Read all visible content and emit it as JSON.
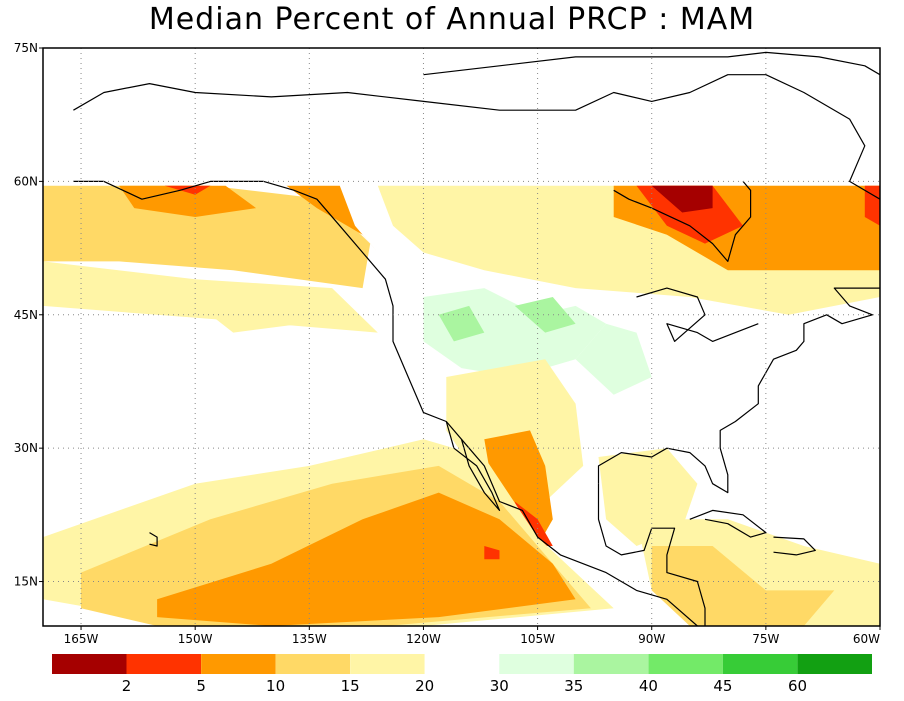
{
  "title": "Median Percent of Annual PRCP  :  MAM",
  "map": {
    "lon_range": [
      -170,
      -60
    ],
    "lat_range": [
      10,
      75
    ],
    "lon_ticks": [
      {
        "value": -165,
        "label": "165W"
      },
      {
        "value": -150,
        "label": "150W"
      },
      {
        "value": -135,
        "label": "135W"
      },
      {
        "value": -120,
        "label": "120W"
      },
      {
        "value": -105,
        "label": "105W"
      },
      {
        "value": -90,
        "label": "90W"
      },
      {
        "value": -75,
        "label": "75W"
      },
      {
        "value": -60,
        "label": "60W"
      }
    ],
    "lat_ticks": [
      {
        "value": 15,
        "label": "15N"
      },
      {
        "value": 30,
        "label": "30N"
      },
      {
        "value": 45,
        "label": "45N"
      },
      {
        "value": 60,
        "label": "60N"
      },
      {
        "value": 75,
        "label": "75N"
      }
    ],
    "gridlines": "dotted",
    "data_northern_limit_lat": 59.5
  },
  "colorbar": {
    "bins": [
      {
        "color": "#a50000"
      },
      {
        "color": "#ff3300"
      },
      {
        "color": "#ff9900"
      },
      {
        "color": "#ffd966"
      },
      {
        "color": "#fff5a6"
      },
      {
        "color": "#ffffff"
      },
      {
        "color": "#dfffdf"
      },
      {
        "color": "#aaf5a0"
      },
      {
        "color": "#73ea68"
      },
      {
        "color": "#37cc37"
      },
      {
        "color": "#12a012"
      }
    ],
    "labels": [
      "2",
      "5",
      "10",
      "15",
      "20",
      "30",
      "35",
      "40",
      "45",
      "60"
    ]
  },
  "regions": [
    {
      "name": "northeast-pacific-band",
      "color": "#ffd966",
      "pts": [
        [
          -170,
          59.5
        ],
        [
          -148,
          59.5
        ],
        [
          -133,
          58
        ],
        [
          -127,
          53
        ],
        [
          -128,
          48
        ],
        [
          -145,
          50
        ],
        [
          -160,
          51
        ],
        [
          -170,
          51
        ]
      ]
    },
    {
      "name": "pacific-yellow-pale",
      "color": "#fff5a6",
      "pts": [
        [
          -170,
          51
        ],
        [
          -150,
          49
        ],
        [
          -132,
          48
        ],
        [
          -126,
          43
        ],
        [
          -140,
          44
        ],
        [
          -155,
          45
        ],
        [
          -170,
          46
        ]
      ]
    },
    {
      "name": "pacific-patch-pale",
      "color": "#fff5a6",
      "pts": [
        [
          -148,
          45
        ],
        [
          -140,
          46
        ],
        [
          -136,
          44
        ],
        [
          -145,
          43
        ]
      ]
    },
    {
      "name": "alaska-orange",
      "color": "#ff9900",
      "pts": [
        [
          -160,
          59.5
        ],
        [
          -146,
          59.5
        ],
        [
          -142,
          57
        ],
        [
          -150,
          56
        ],
        [
          -158,
          57
        ]
      ]
    },
    {
      "name": "alaska-coast-red",
      "color": "#ff3300",
      "pts": [
        [
          -154,
          59.5
        ],
        [
          -148,
          59.5
        ],
        [
          -150,
          58.5
        ]
      ]
    },
    {
      "name": "bc-coast-orange",
      "color": "#ff9900",
      "pts": [
        [
          -138,
          59.5
        ],
        [
          -131,
          59.5
        ],
        [
          -129,
          55
        ],
        [
          -126,
          52
        ],
        [
          -128,
          54
        ],
        [
          -134,
          57
        ]
      ]
    },
    {
      "name": "canada-pale",
      "color": "#fff5a6",
      "pts": [
        [
          -126,
          59.5
        ],
        [
          -60,
          59.5
        ],
        [
          -60,
          47
        ],
        [
          -72,
          45
        ],
        [
          -85,
          47
        ],
        [
          -100,
          48
        ],
        [
          -112,
          50
        ],
        [
          -120,
          52
        ],
        [
          -124,
          55
        ]
      ]
    },
    {
      "name": "hudson-orange",
      "color": "#ff9900",
      "pts": [
        [
          -95,
          59.5
        ],
        [
          -60,
          59.5
        ],
        [
          -60,
          50
        ],
        [
          -70,
          50
        ],
        [
          -80,
          50
        ],
        [
          -88,
          54
        ],
        [
          -95,
          56
        ]
      ]
    },
    {
      "name": "hudson-red",
      "color": "#ff3300",
      "pts": [
        [
          -92,
          59.5
        ],
        [
          -82,
          59.5
        ],
        [
          -78,
          55
        ],
        [
          -83,
          53
        ],
        [
          -88,
          55
        ]
      ]
    },
    {
      "name": "hudson-darkred",
      "color": "#a50000",
      "pts": [
        [
          -90,
          59.5
        ],
        [
          -82,
          59.5
        ],
        [
          -82,
          57
        ],
        [
          -86,
          56.5
        ]
      ]
    },
    {
      "name": "labrador-red",
      "color": "#ff3300",
      "pts": [
        [
          -62,
          59.5
        ],
        [
          -60,
          59.5
        ],
        [
          -60,
          55
        ],
        [
          -62,
          56
        ]
      ]
    },
    {
      "name": "northwest-green",
      "color": "#dfffdf",
      "pts": [
        [
          -120,
          47
        ],
        [
          -112,
          48
        ],
        [
          -105,
          45
        ],
        [
          -100,
          46
        ],
        [
          -96,
          44
        ],
        [
          -100,
          40
        ],
        [
          -108,
          38
        ],
        [
          -115,
          39
        ],
        [
          -120,
          42
        ]
      ]
    },
    {
      "name": "plains-green",
      "color": "#dfffdf",
      "pts": [
        [
          -96,
          44
        ],
        [
          -92,
          43
        ],
        [
          -90,
          38
        ],
        [
          -95,
          36
        ],
        [
          -100,
          40
        ]
      ]
    },
    {
      "name": "idaho-green-mid",
      "color": "#aaf5a0",
      "pts": [
        [
          -118,
          45
        ],
        [
          -114,
          46
        ],
        [
          -112,
          43
        ],
        [
          -116,
          42
        ]
      ]
    },
    {
      "name": "montana-green-mid",
      "color": "#aaf5a0",
      "pts": [
        [
          -108,
          46
        ],
        [
          -103,
          47
        ],
        [
          -100,
          44
        ],
        [
          -104,
          43
        ]
      ]
    },
    {
      "name": "southwest-yellow",
      "color": "#ffd966",
      "pts": [
        [
          -115,
          36
        ],
        [
          -105,
          38
        ],
        [
          -101,
          33
        ],
        [
          -103,
          28
        ],
        [
          -108,
          25
        ],
        [
          -113,
          28
        ]
      ]
    },
    {
      "name": "southwest-pale",
      "color": "#fff5a6",
      "pts": [
        [
          -117,
          38
        ],
        [
          -104,
          40
        ],
        [
          -100,
          35
        ],
        [
          -99,
          28
        ],
        [
          -104,
          24
        ],
        [
          -113,
          27
        ],
        [
          -117,
          32
        ]
      ]
    },
    {
      "name": "mexico-orange",
      "color": "#ff9900",
      "pts": [
        [
          -112,
          31
        ],
        [
          -106,
          32
        ],
        [
          -104,
          28
        ],
        [
          -103,
          22
        ],
        [
          -105,
          19
        ],
        [
          -109,
          22
        ],
        [
          -111,
          26
        ]
      ]
    },
    {
      "name": "mexico-red",
      "color": "#ff3300",
      "pts": [
        [
          -108,
          24
        ],
        [
          -105,
          22
        ],
        [
          -103,
          19
        ],
        [
          -106,
          19
        ],
        [
          -107,
          21
        ]
      ]
    },
    {
      "name": "tropical-pacific-pale",
      "color": "#fff5a6",
      "pts": [
        [
          -170,
          20
        ],
        [
          -150,
          26
        ],
        [
          -135,
          28
        ],
        [
          -120,
          31
        ],
        [
          -112,
          29
        ],
        [
          -105,
          20
        ],
        [
          -95,
          12
        ],
        [
          -120,
          10
        ],
        [
          -150,
          10
        ],
        [
          -170,
          13
        ]
      ]
    },
    {
      "name": "tropical-pacific-yellow",
      "color": "#ffd966",
      "pts": [
        [
          -165,
          16
        ],
        [
          -148,
          22
        ],
        [
          -132,
          26
        ],
        [
          -118,
          28
        ],
        [
          -110,
          24
        ],
        [
          -104,
          18
        ],
        [
          -98,
          12
        ],
        [
          -125,
          10
        ],
        [
          -155,
          10
        ],
        [
          -165,
          12
        ]
      ]
    },
    {
      "name": "tropical-pacific-orange",
      "color": "#ff9900",
      "pts": [
        [
          -155,
          13
        ],
        [
          -140,
          17
        ],
        [
          -128,
          22
        ],
        [
          -118,
          25
        ],
        [
          -110,
          22
        ],
        [
          -103,
          17
        ],
        [
          -100,
          13
        ],
        [
          -118,
          11
        ],
        [
          -140,
          10
        ],
        [
          -155,
          11
        ]
      ]
    },
    {
      "name": "pacific-red-spot",
      "color": "#ff3300",
      "pts": [
        [
          -112,
          19
        ],
        [
          -110,
          18.5
        ],
        [
          -110,
          17.5
        ],
        [
          -112,
          17.5
        ]
      ]
    },
    {
      "name": "gulf-yellow",
      "color": "#fff5a6",
      "pts": [
        [
          -97,
          29
        ],
        [
          -88,
          30
        ],
        [
          -84,
          26
        ],
        [
          -86,
          21
        ],
        [
          -92,
          19
        ],
        [
          -96,
          22
        ]
      ]
    },
    {
      "name": "caribbean-pale",
      "color": "#fff5a6",
      "pts": [
        [
          -92,
          22
        ],
        [
          -80,
          22
        ],
        [
          -70,
          19
        ],
        [
          -60,
          17
        ],
        [
          -60,
          10
        ],
        [
          -80,
          10
        ],
        [
          -90,
          14
        ]
      ]
    },
    {
      "name": "caribbean-yellow",
      "color": "#ffd966",
      "pts": [
        [
          -90,
          19
        ],
        [
          -82,
          19
        ],
        [
          -75,
          14
        ],
        [
          -66,
          14
        ],
        [
          -70,
          10
        ],
        [
          -85,
          10
        ],
        [
          -90,
          14
        ]
      ]
    }
  ],
  "coastlines": [
    {
      "name": "north-america-west-coast",
      "pts": [
        [
          -166,
          60
        ],
        [
          -162,
          60
        ],
        [
          -157,
          58
        ],
        [
          -152,
          59
        ],
        [
          -148,
          60
        ],
        [
          -141,
          60
        ],
        [
          -137,
          59
        ],
        [
          -134,
          58
        ],
        [
          -131,
          55
        ],
        [
          -128,
          52
        ],
        [
          -125,
          49
        ],
        [
          -124,
          46
        ],
        [
          -124,
          42
        ],
        [
          -122,
          38
        ],
        [
          -120,
          34
        ],
        [
          -117,
          33
        ],
        [
          -114,
          30
        ],
        [
          -112,
          28
        ],
        [
          -110,
          24
        ],
        [
          -107,
          23
        ],
        [
          -105,
          20
        ],
        [
          -102,
          18
        ],
        [
          -96,
          16
        ],
        [
          -92,
          14
        ],
        [
          -88,
          13
        ],
        [
          -84,
          10
        ]
      ]
    },
    {
      "name": "baja-california",
      "pts": [
        [
          -117,
          33
        ],
        [
          -116,
          30
        ],
        [
          -113,
          28
        ],
        [
          -111,
          25
        ],
        [
          -110,
          23
        ],
        [
          -112,
          25
        ],
        [
          -114,
          28
        ],
        [
          -115,
          31
        ]
      ]
    },
    {
      "name": "gulf-coast",
      "pts": [
        [
          -97,
          26
        ],
        [
          -97,
          28
        ],
        [
          -94,
          29.5
        ],
        [
          -90,
          29
        ],
        [
          -88,
          30
        ],
        [
          -85,
          29.5
        ],
        [
          -83,
          28
        ],
        [
          -82,
          26
        ],
        [
          -80,
          25
        ],
        [
          -80,
          27
        ],
        [
          -81,
          30
        ],
        [
          -81,
          32
        ],
        [
          -79,
          33
        ],
        [
          -76,
          35
        ],
        [
          -76,
          37
        ],
        [
          -74,
          40
        ],
        [
          -71,
          41
        ],
        [
          -70,
          42
        ],
        [
          -70,
          44
        ],
        [
          -67,
          45
        ],
        [
          -65,
          44
        ],
        [
          -61,
          45
        ],
        [
          -64,
          46
        ],
        [
          -66,
          48
        ],
        [
          -60,
          48
        ]
      ]
    },
    {
      "name": "mexico-east-coast",
      "pts": [
        [
          -97,
          26
        ],
        [
          -97,
          22
        ],
        [
          -96,
          19
        ],
        [
          -94,
          18
        ],
        [
          -91,
          18.5
        ],
        [
          -90,
          21
        ],
        [
          -87,
          21
        ],
        [
          -88,
          18
        ],
        [
          -88,
          16
        ],
        [
          -84,
          15
        ],
        [
          -83,
          12
        ],
        [
          -83,
          10
        ]
      ]
    },
    {
      "name": "hudson-bay",
      "pts": [
        [
          -95,
          59
        ],
        [
          -93,
          58
        ],
        [
          -90,
          57
        ],
        [
          -85,
          55
        ],
        [
          -82,
          53
        ],
        [
          -80,
          51
        ],
        [
          -79,
          54
        ],
        [
          -77,
          56
        ],
        [
          -77,
          59
        ],
        [
          -78,
          60
        ]
      ]
    },
    {
      "name": "cuba",
      "pts": [
        [
          -85,
          22
        ],
        [
          -82,
          23
        ],
        [
          -78,
          22.5
        ],
        [
          -75,
          20.5
        ],
        [
          -77,
          20
        ],
        [
          -80,
          21.5
        ],
        [
          -83,
          22
        ]
      ]
    },
    {
      "name": "hispaniola",
      "pts": [
        [
          -74,
          20
        ],
        [
          -70,
          19.8
        ],
        [
          -68.5,
          18.5
        ],
        [
          -71,
          18
        ],
        [
          -74,
          18.3
        ]
      ]
    },
    {
      "name": "hawaii",
      "pts": [
        [
          -156,
          20.5
        ],
        [
          -155,
          20
        ],
        [
          -155,
          19
        ],
        [
          -156,
          19.2
        ]
      ]
    },
    {
      "name": "great-lakes",
      "pts": [
        [
          -92,
          47
        ],
        [
          -88,
          48
        ],
        [
          -84,
          47
        ],
        [
          -83,
          45
        ],
        [
          -87,
          42
        ],
        [
          -88,
          44
        ],
        [
          -84,
          43
        ],
        [
          -82,
          42
        ],
        [
          -79,
          43
        ],
        [
          -76,
          44
        ]
      ]
    },
    {
      "name": "arctic-coast",
      "pts": [
        [
          -166,
          68
        ],
        [
          -162,
          70
        ],
        [
          -156,
          71
        ],
        [
          -150,
          70
        ],
        [
          -140,
          69.5
        ],
        [
          -130,
          70
        ],
        [
          -120,
          69
        ],
        [
          -110,
          68
        ],
        [
          -100,
          68
        ],
        [
          -95,
          70
        ],
        [
          -90,
          69
        ],
        [
          -85,
          70
        ],
        [
          -80,
          72
        ],
        [
          -75,
          72
        ],
        [
          -70,
          70
        ],
        [
          -64,
          67
        ],
        [
          -62,
          64
        ],
        [
          -64,
          60
        ],
        [
          -60,
          58
        ]
      ]
    },
    {
      "name": "arctic-islands",
      "pts": [
        [
          -120,
          72
        ],
        [
          -110,
          73
        ],
        [
          -100,
          74
        ],
        [
          -90,
          74
        ],
        [
          -80,
          74
        ],
        [
          -75,
          74.5
        ],
        [
          -68,
          74
        ],
        [
          -62,
          73
        ],
        [
          -60,
          72
        ]
      ]
    }
  ]
}
